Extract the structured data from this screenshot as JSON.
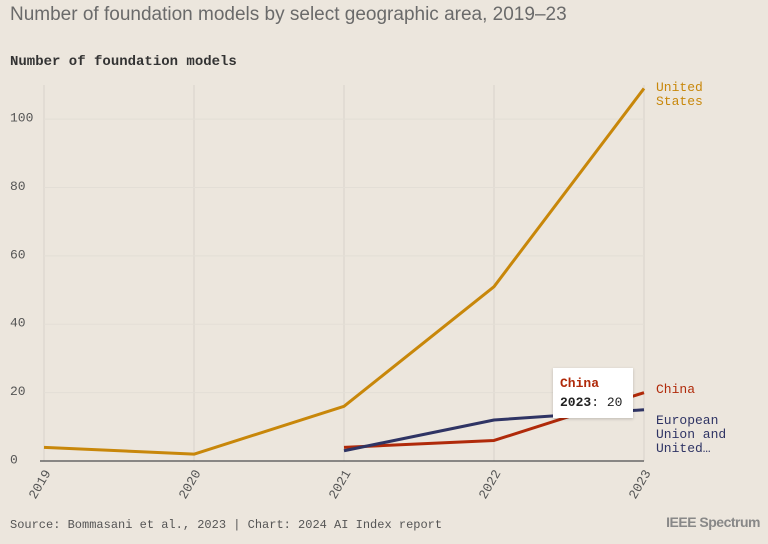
{
  "title": "Number of foundation models by select geographic area, 2019–23",
  "chart_data": {
    "type": "line",
    "y_label": "Number of foundation models",
    "x": [
      2019,
      2020,
      2021,
      2022,
      2023
    ],
    "xlim": [
      2019,
      2023
    ],
    "ylim": [
      0,
      110
    ],
    "yticks": [
      0,
      20,
      40,
      60,
      80,
      100
    ],
    "grid": true,
    "series": [
      {
        "name": "United States",
        "color": "#c8870a",
        "values": [
          4,
          2,
          16,
          51,
          109
        ]
      },
      {
        "name": "China",
        "color": "#b02a0a",
        "values": [
          null,
          null,
          4,
          6,
          20
        ]
      },
      {
        "name": "European Union and United…",
        "color": "#2f3464",
        "values": [
          null,
          null,
          3,
          12,
          15
        ]
      }
    ],
    "tooltip": {
      "series": "China",
      "x": 2023,
      "value": 20
    }
  },
  "source": "Source: Bommasani et al., 2023 | Chart: 2024 AI Index report",
  "logo": "IEEE Spectrum"
}
